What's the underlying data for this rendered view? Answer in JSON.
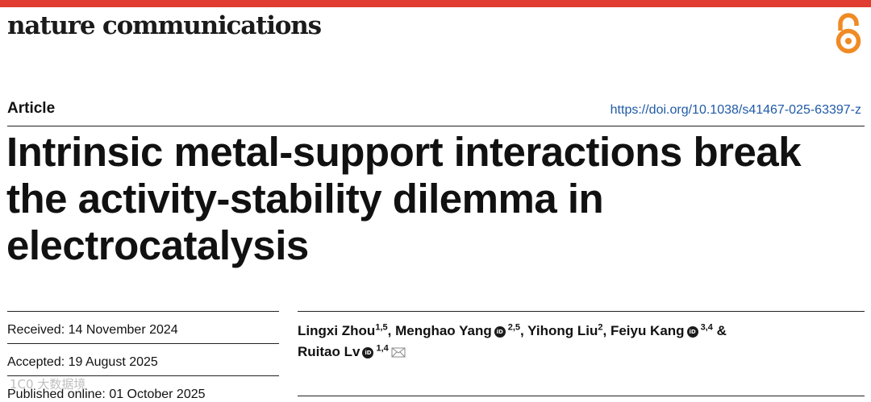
{
  "header": {
    "journal_name": "nature communications",
    "open_access_icon": "open-access-icon",
    "colors": {
      "top_bar": "#e03c31",
      "open_access": "#f08a24",
      "doi_link": "#1f5aa6"
    }
  },
  "article": {
    "type": "Article",
    "doi": "https://doi.org/10.1038/s41467-025-63397-z",
    "title": "Intrinsic metal-support interactions break the activity-stability dilemma in electrocatalysis"
  },
  "dates": {
    "received": "Received: 14 November 2024",
    "accepted": "Accepted: 19 August 2025",
    "published": "Published online: 01 October 2025"
  },
  "authors": [
    {
      "name": "Lingxi Zhou",
      "affil": "1,5",
      "orcid": false
    },
    {
      "name": "Menghao Yang",
      "affil": "2,5",
      "orcid": true
    },
    {
      "name": "Yihong Liu",
      "affil": "2",
      "orcid": false
    },
    {
      "name": "Feiyu Kang",
      "affil": "3,4",
      "orcid": true
    },
    {
      "name": "Ruitao Lv",
      "affil": "1,4",
      "orcid": true,
      "corresponding": true
    }
  ],
  "authors_separators": {
    "comma": ", ",
    "ampersand": " &"
  },
  "watermark": "1C0 大数据境"
}
